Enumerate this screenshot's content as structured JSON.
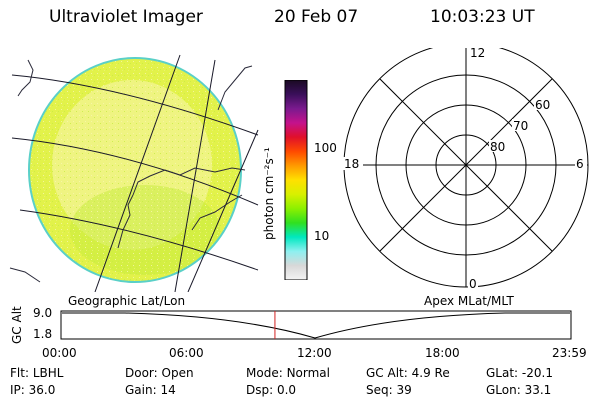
{
  "header": {
    "title": "Ultraviolet Imager",
    "date": "20 Feb 07",
    "time": "10:03:23 UT"
  },
  "imager": {
    "caption": "Geographic Lat/Lon",
    "colors": {
      "light": "#f5f59a",
      "mid": "#e2f24a",
      "green": "#c5ec3c",
      "limb": "#5ad0c8"
    }
  },
  "colorbar": {
    "unit_label": "photon cm⁻²s⁻¹",
    "ticks": [
      "100",
      "10"
    ],
    "stops": [
      "#1a0a22",
      "#3a0f5a",
      "#7a1a8e",
      "#c4128c",
      "#e0102a",
      "#ff4a00",
      "#ff9a00",
      "#ffe000",
      "#d8f000",
      "#8cf000",
      "#30e020",
      "#00e8c0",
      "#8ef0f0",
      "#d8d8d8",
      "#f4f4f4"
    ]
  },
  "polar": {
    "caption": "Apex MLat/MLT",
    "mlt_labels": {
      "top": "12",
      "left": "18",
      "right": "6",
      "bottom": "0"
    },
    "lat_labels": [
      "60",
      "70",
      "80"
    ]
  },
  "timeline": {
    "axis_label": "GC Alt",
    "y_ticks": [
      "9.0",
      "1.8"
    ],
    "x_ticks": [
      "00:00",
      "06:00",
      "12:00",
      "18:00",
      "23:59"
    ],
    "marker_time_hours": 10.06,
    "marker_color": "#d22020"
  },
  "status": {
    "row1": [
      {
        "label": "Flt:",
        "value": "LBHL"
      },
      {
        "label": "Door:",
        "value": "Open"
      },
      {
        "label": "Mode:",
        "value": "Normal"
      },
      {
        "label": "GC Alt:",
        "value": "4.9 Re"
      },
      {
        "label": "GLat:",
        "value": "-20.1"
      }
    ],
    "row2": [
      {
        "label": "IP:",
        "value": "36.0"
      },
      {
        "label": "Gain:",
        "value": "14"
      },
      {
        "label": "Dsp:",
        "value": "0.0"
      },
      {
        "label": "Seq:",
        "value": "39"
      },
      {
        "label": "GLon:",
        "value": "33.1"
      }
    ]
  }
}
